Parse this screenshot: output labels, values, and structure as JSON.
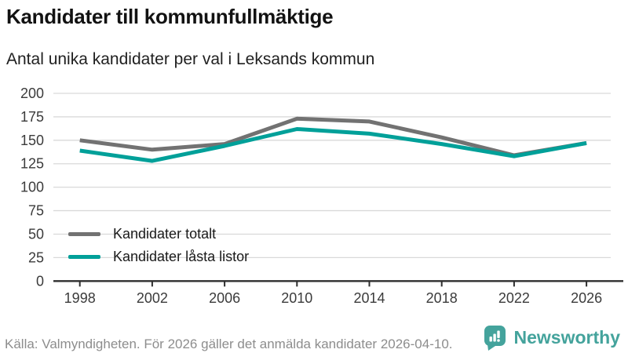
{
  "header": {
    "title": "Kandidater till kommunfullmäktige",
    "subtitle": "Antal unika kandidater per val i Leksands kommun"
  },
  "chart_data": {
    "type": "line",
    "x": [
      1998,
      2002,
      2006,
      2010,
      2014,
      2018,
      2022,
      2026
    ],
    "series": [
      {
        "name": "Kandidater totalt",
        "color": "#727272",
        "values": [
          150,
          140,
          146,
          173,
          170,
          153,
          134,
          147
        ]
      },
      {
        "name": "Kandidater låsta listor",
        "color": "#00a099",
        "values": [
          139,
          128,
          144,
          162,
          157,
          146,
          133,
          147
        ]
      }
    ],
    "ylim": [
      0,
      200
    ],
    "yticks": [
      0,
      25,
      50,
      75,
      100,
      125,
      150,
      175,
      200
    ],
    "grid": "horizontal",
    "legend_position": "inside-bottom-left",
    "xlabel": "",
    "ylabel": ""
  },
  "footer": {
    "source": "Källa: Valmyndigheten. För 2026 gäller det anmälda kandidater 2026-04-10.",
    "brand": "Newsworthy",
    "logo_icon": "bar-chart-speech-bubble-icon"
  },
  "colors": {
    "grid": "#d9d9d9",
    "axis": "#2e2e2e",
    "axis_label": "#3b3b3b",
    "brand": "#44a39c",
    "series_total": "#727272",
    "series_locked": "#00a099"
  }
}
